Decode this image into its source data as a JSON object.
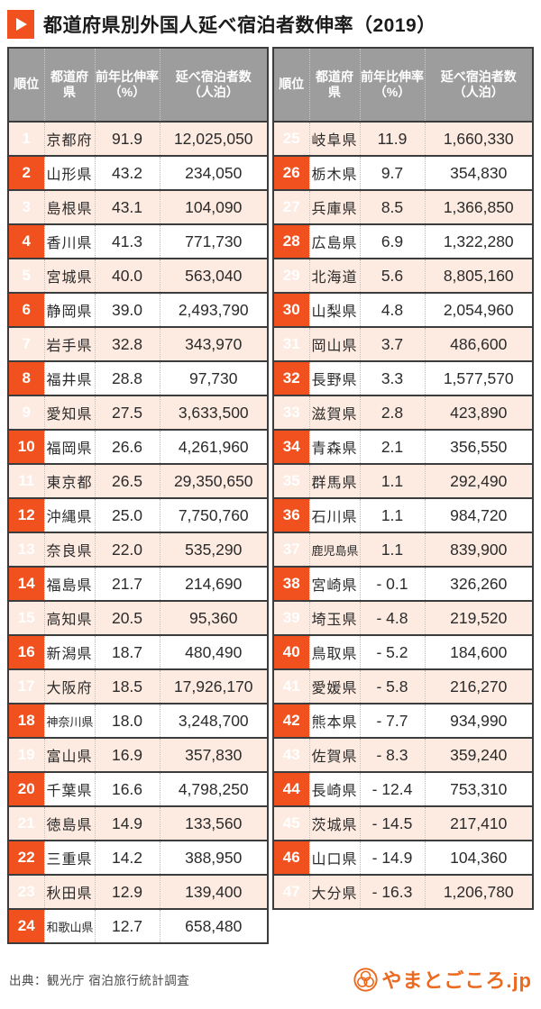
{
  "title": "都道府県別外国人延べ宿泊者数伸率（2019）",
  "columns": {
    "rank": "順位",
    "prefecture": "都道府県",
    "growth_l1": "前年比伸率",
    "growth_l2": "（%）",
    "nights_l1": "延べ宿泊者数",
    "nights_l2": "（人泊）"
  },
  "footer": {
    "source": "出典：観光庁 宿泊旅行統計調査",
    "logo_text": "やまとごころ.jp"
  },
  "colors": {
    "accent": "#f0511e",
    "header_bg": "#9d9d9d",
    "row_alt_bg": "#fdeae0",
    "border_dark": "#3c3c3c",
    "logo_orange": "#ec6a1f"
  },
  "chart_data": {
    "type": "table",
    "title": "都道府県別外国人延べ宿泊者数伸率（2019）",
    "columns": [
      "順位",
      "都道府県",
      "前年比伸率（%）",
      "延べ宿泊者数（人泊）"
    ],
    "layout": {
      "left_table_ranks": "1-24",
      "right_table_ranks": "25-47"
    },
    "source": "観光庁 宿泊旅行統計調査",
    "rows": [
      [
        1,
        "京都府",
        91.9,
        12025050
      ],
      [
        2,
        "山形県",
        43.2,
        234050
      ],
      [
        3,
        "島根県",
        43.1,
        104090
      ],
      [
        4,
        "香川県",
        41.3,
        771730
      ],
      [
        5,
        "宮城県",
        40.0,
        563040
      ],
      [
        6,
        "静岡県",
        39.0,
        2493790
      ],
      [
        7,
        "岩手県",
        32.8,
        343970
      ],
      [
        8,
        "福井県",
        28.8,
        97730
      ],
      [
        9,
        "愛知県",
        27.5,
        3633500
      ],
      [
        10,
        "福岡県",
        26.6,
        4261960
      ],
      [
        11,
        "東京都",
        26.5,
        29350650
      ],
      [
        12,
        "沖縄県",
        25.0,
        7750760
      ],
      [
        13,
        "奈良県",
        22.0,
        535290
      ],
      [
        14,
        "福島県",
        21.7,
        214690
      ],
      [
        15,
        "高知県",
        20.5,
        95360
      ],
      [
        16,
        "新潟県",
        18.7,
        480490
      ],
      [
        17,
        "大阪府",
        18.5,
        17926170
      ],
      [
        18,
        "神奈川県",
        18.0,
        3248700
      ],
      [
        19,
        "富山県",
        16.9,
        357830
      ],
      [
        20,
        "千葉県",
        16.6,
        4798250
      ],
      [
        21,
        "徳島県",
        14.9,
        133560
      ],
      [
        22,
        "三重県",
        14.2,
        388950
      ],
      [
        23,
        "秋田県",
        12.9,
        139400
      ],
      [
        24,
        "和歌山県",
        12.7,
        658480
      ],
      [
        25,
        "岐阜県",
        11.9,
        1660330
      ],
      [
        26,
        "栃木県",
        9.7,
        354830
      ],
      [
        27,
        "兵庫県",
        8.5,
        1366850
      ],
      [
        28,
        "広島県",
        6.9,
        1322280
      ],
      [
        29,
        "北海道",
        5.6,
        8805160
      ],
      [
        30,
        "山梨県",
        4.8,
        2054960
      ],
      [
        31,
        "岡山県",
        3.7,
        486600
      ],
      [
        32,
        "長野県",
        3.3,
        1577570
      ],
      [
        33,
        "滋賀県",
        2.8,
        423890
      ],
      [
        34,
        "青森県",
        2.1,
        356550
      ],
      [
        35,
        "群馬県",
        1.1,
        292490
      ],
      [
        36,
        "石川県",
        1.1,
        984720
      ],
      [
        37,
        "鹿児島県",
        1.1,
        839900
      ],
      [
        38,
        "宮崎県",
        -0.1,
        326260
      ],
      [
        39,
        "埼玉県",
        -4.8,
        219520
      ],
      [
        40,
        "鳥取県",
        -5.2,
        184600
      ],
      [
        41,
        "愛媛県",
        -5.8,
        216270
      ],
      [
        42,
        "熊本県",
        -7.7,
        934990
      ],
      [
        43,
        "佐賀県",
        -8.3,
        359240
      ],
      [
        44,
        "長崎県",
        -12.4,
        753310
      ],
      [
        45,
        "茨城県",
        -14.5,
        217410
      ],
      [
        46,
        "山口県",
        -14.9,
        104360
      ],
      [
        47,
        "大分県",
        -16.3,
        1206780
      ]
    ]
  }
}
